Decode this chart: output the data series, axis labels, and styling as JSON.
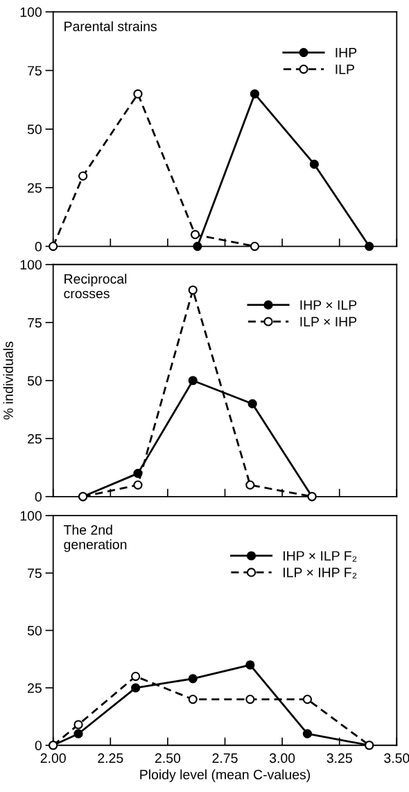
{
  "chart_data": [
    {
      "type": "line",
      "annotations": [
        "Parental strains"
      ],
      "xlim": [
        2.0,
        3.5
      ],
      "xticks": [
        2.0,
        2.25,
        2.5,
        2.75,
        3.0,
        3.25,
        3.5
      ],
      "ylim": [
        0,
        100
      ],
      "yticks": [
        0,
        25,
        50,
        75,
        100
      ],
      "tick_labels": "y",
      "legend": "top right",
      "grid": false,
      "series": [
        {
          "name": "IHP",
          "color": "#000000",
          "marker": "circle",
          "line_style": "solid",
          "x": [
            2.63,
            2.88,
            3.14,
            3.38
          ],
          "values": [
            0,
            65,
            35,
            0
          ]
        },
        {
          "name": "ILP",
          "color": "#000000",
          "marker": "circle",
          "line_style": "dashed",
          "x": [
            2.0,
            2.13,
            2.37,
            2.62,
            2.88
          ],
          "values": [
            0,
            30,
            65,
            5,
            0
          ]
        }
      ]
    },
    {
      "type": "line",
      "annotations": [
        "Reciprocal\ncrosses"
      ],
      "ylabel": "% individuals",
      "xlim": [
        2.0,
        3.5
      ],
      "xticks": [
        2.0,
        2.25,
        2.5,
        2.75,
        3.0,
        3.25,
        3.5
      ],
      "ylim": [
        0,
        100
      ],
      "yticks": [
        0,
        25,
        50,
        75,
        100
      ],
      "tick_labels": "y",
      "legend": "top right",
      "grid": false,
      "series": [
        {
          "name": "IHP × ILP",
          "color": "#000000",
          "marker": "circle",
          "line_style": "solid",
          "x": [
            2.13,
            2.37,
            2.61,
            2.87,
            3.13
          ],
          "values": [
            0,
            10,
            50,
            40,
            0
          ]
        },
        {
          "name": "ILP × IHP",
          "color": "#000000",
          "marker": "circle",
          "line_style": "dashed",
          "x": [
            2.13,
            2.37,
            2.61,
            2.86,
            3.13
          ],
          "values": [
            0,
            5,
            89,
            5,
            0
          ]
        }
      ]
    },
    {
      "type": "line",
      "annotations": [
        "The 2nd\ngeneration"
      ],
      "xlabel": "Ploidy level (mean C-values)",
      "xlim": [
        2.0,
        3.5
      ],
      "xticks": [
        {
          "value": 2.0,
          "label": "2.00"
        },
        2.25,
        {
          "value": 2.5,
          "label": "2.50"
        },
        2.75,
        {
          "value": 3.0,
          "label": "3.00"
        },
        3.25,
        {
          "value": 3.5,
          "label": "3.50"
        }
      ],
      "ylim": [
        0,
        100
      ],
      "yticks": [
        0,
        25,
        50,
        75,
        100
      ],
      "legend": "top right",
      "grid": false,
      "series": [
        {
          "name": "IHP × ILP F₂",
          "color": "#000000",
          "marker": "circle",
          "line_style": "solid",
          "x": [
            2.0,
            2.11,
            2.36,
            2.61,
            2.86,
            3.11,
            3.38
          ],
          "values": [
            0,
            5,
            25,
            29,
            35,
            5,
            0
          ]
        },
        {
          "name": "ILP × IHP F₂",
          "color": "#000000",
          "marker": "circle",
          "line_style": "dashed",
          "x": [
            2.0,
            2.11,
            2.36,
            2.61,
            2.86,
            3.11,
            3.38
          ],
          "values": [
            0,
            9,
            30,
            20,
            20,
            20,
            0
          ]
        }
      ]
    }
  ]
}
